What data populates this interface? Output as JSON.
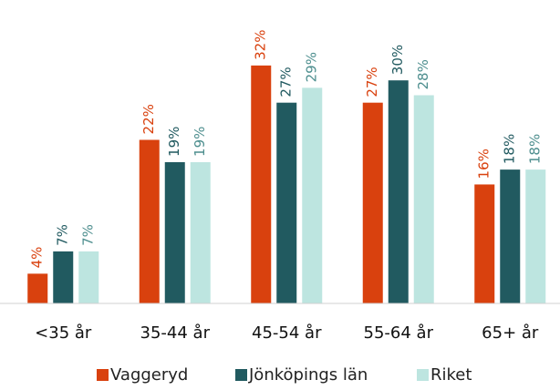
{
  "chart_data": {
    "type": "bar",
    "categories": [
      "<35 år",
      "35-44 år",
      "45-54 år",
      "55-64 år",
      "65+ år"
    ],
    "series": [
      {
        "name": "Vaggeryd",
        "color": "#d9410e",
        "values": [
          4,
          22,
          32,
          27,
          16
        ],
        "value_labels": [
          "4%",
          "22%",
          "32%",
          "27%",
          "16%"
        ]
      },
      {
        "name": "Jönköpings län",
        "color": "#215a60",
        "values": [
          7,
          19,
          27,
          30,
          18
        ],
        "value_labels": [
          "7%",
          "19%",
          "27%",
          "30%",
          "18%"
        ]
      },
      {
        "name": "Riket",
        "color": "#bde5e0",
        "values": [
          7,
          19,
          29,
          28,
          18
        ],
        "value_labels": [
          "7%",
          "19%",
          "29%",
          "28%",
          "18%"
        ]
      }
    ],
    "ylim": [
      0,
      40
    ],
    "legend": "bottom"
  }
}
